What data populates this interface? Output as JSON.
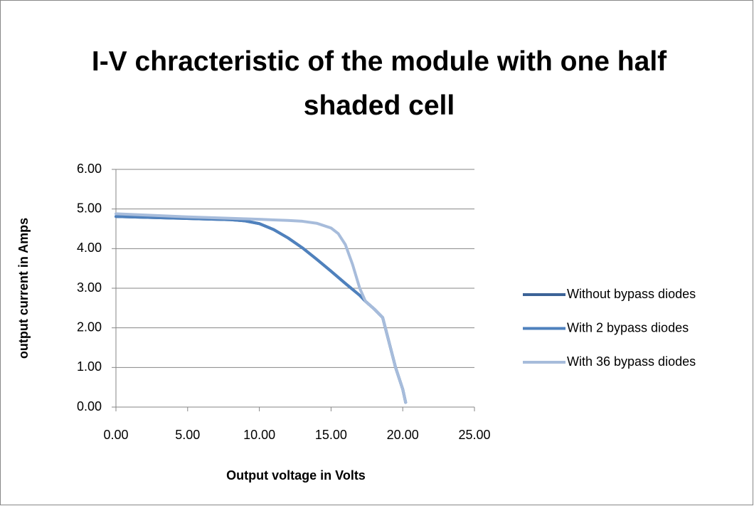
{
  "chart_data": {
    "type": "line",
    "title": "I-V chracteristic of the module with one half shaded cell",
    "x_label": "Output voltage in Volts",
    "y_label": "output current in Amps",
    "xlim": [
      0,
      25
    ],
    "xticks": [
      {
        "value": 0,
        "label": "0.00"
      },
      {
        "value": 5,
        "label": "5.00"
      },
      {
        "value": 10,
        "label": "10.00"
      },
      {
        "value": 15,
        "label": "15.00"
      },
      {
        "value": 20,
        "label": "20.00"
      },
      {
        "value": 25,
        "label": "25.00"
      }
    ],
    "ylim": [
      0,
      6
    ],
    "yticks": [
      {
        "value": 0,
        "label": "0.00"
      },
      {
        "value": 1,
        "label": "1.00"
      },
      {
        "value": 2,
        "label": "2.00"
      },
      {
        "value": 3,
        "label": "3.00"
      },
      {
        "value": 4,
        "label": "4.00"
      },
      {
        "value": 5,
        "label": "5.00"
      },
      {
        "value": 6,
        "label": "6.00"
      }
    ],
    "grid": true,
    "legend": "right",
    "series": [
      {
        "name": "Without bypass diodes",
        "color": "#3c6397",
        "x": [
          0,
          2,
          4,
          6,
          8,
          9,
          10,
          11,
          12,
          13,
          14,
          15,
          16,
          17,
          17.4,
          18,
          18.6,
          19,
          19.5,
          20,
          20.2
        ],
        "values": [
          4.81,
          4.79,
          4.77,
          4.75,
          4.73,
          4.7,
          4.63,
          4.48,
          4.27,
          4.02,
          3.73,
          3.43,
          3.12,
          2.82,
          2.67,
          2.48,
          2.26,
          1.7,
          1.0,
          0.45,
          0.12
        ]
      },
      {
        "name": "With 2 bypass diodes",
        "color": "#4f81bd",
        "x": [
          0,
          2,
          4,
          6,
          8,
          9,
          10,
          11,
          12,
          13,
          14,
          15,
          16,
          17,
          17.4,
          18,
          18.6,
          19,
          19.5,
          20,
          20.2
        ],
        "values": [
          4.81,
          4.79,
          4.77,
          4.75,
          4.73,
          4.7,
          4.63,
          4.48,
          4.27,
          4.02,
          3.73,
          3.43,
          3.12,
          2.82,
          2.67,
          2.48,
          2.26,
          1.7,
          1.0,
          0.45,
          0.12
        ]
      },
      {
        "name": "With 36 bypass diodes",
        "color": "#a7bcdb",
        "x": [
          0,
          5,
          10,
          12,
          13,
          14,
          15,
          15.5,
          16,
          16.5,
          17,
          17.4,
          18,
          18.6,
          19,
          19.5,
          20,
          20.2
        ],
        "values": [
          4.88,
          4.8,
          4.74,
          4.71,
          4.69,
          4.64,
          4.52,
          4.38,
          4.1,
          3.6,
          3.0,
          2.67,
          2.48,
          2.26,
          1.7,
          1.0,
          0.45,
          0.12
        ]
      }
    ]
  }
}
